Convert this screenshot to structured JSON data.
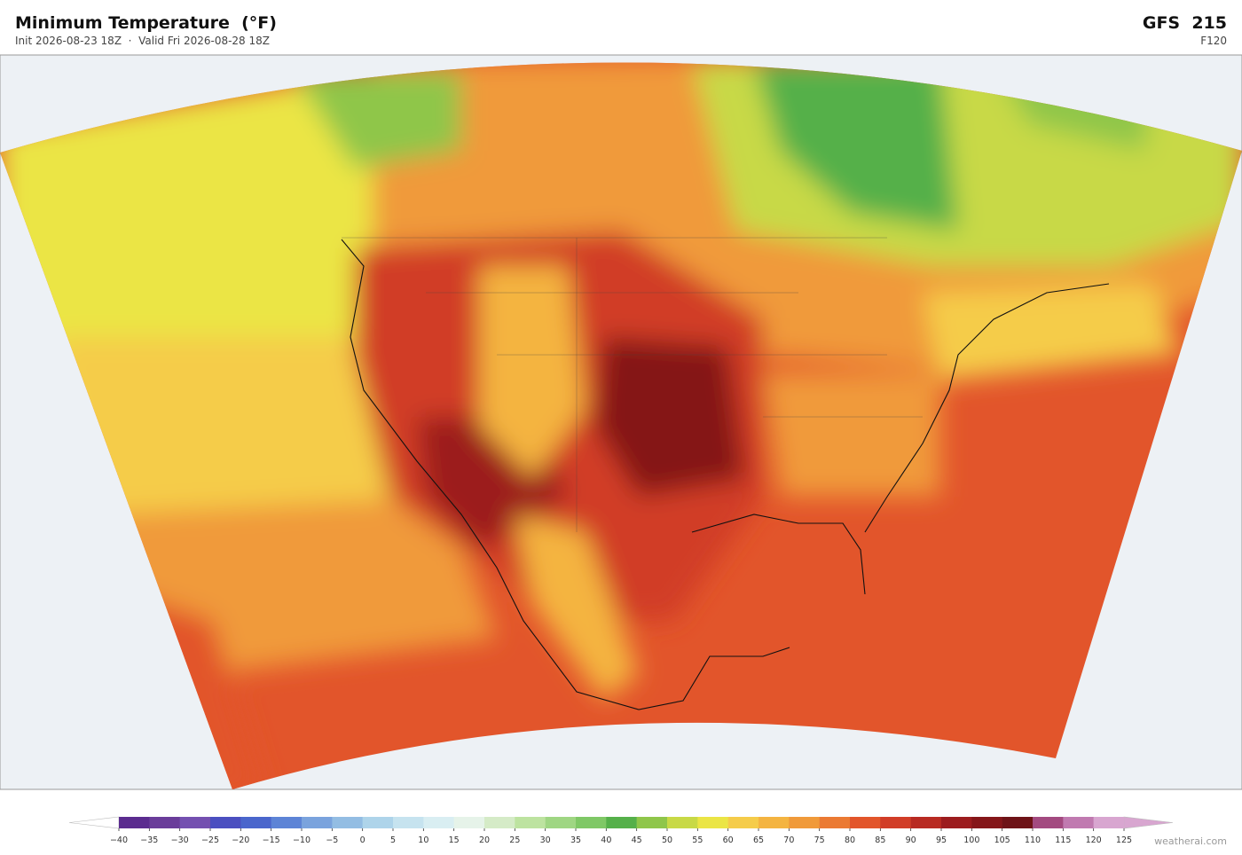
{
  "header": {
    "title": "Minimum Temperature  (°F)",
    "subtitle": "Init 2026-08-23 18Z  ·  Valid Fri 2026-08-28 18Z",
    "model": "GFS  215",
    "forecast_hour": "F120"
  },
  "colorbar": {
    "ticks": [
      {
        "value": -40,
        "label": "−40"
      },
      {
        "value": -35,
        "label": "−35"
      },
      {
        "value": -30,
        "label": "−30"
      },
      {
        "value": -25,
        "label": "−25"
      },
      {
        "value": -20,
        "label": "−20"
      },
      {
        "value": -15,
        "label": "−15"
      },
      {
        "value": -10,
        "label": "−10"
      },
      {
        "value": -5,
        "label": "−5"
      },
      0,
      5,
      10,
      15,
      20,
      25,
      30,
      35,
      40,
      45,
      50,
      55,
      60,
      65,
      70,
      75,
      80,
      85,
      90,
      95,
      100,
      105,
      110,
      115,
      120,
      125
    ],
    "colors": [
      "#5b2c8f",
      "#6a3d9a",
      "#7450b0",
      "#4b4fc0",
      "#4a66cc",
      "#5d84d6",
      "#7aa3dd",
      "#93bde3",
      "#aed4ea",
      "#c6e3ef",
      "#d9eef2",
      "#e6f3e9",
      "#d5ebc7",
      "#bde3a0",
      "#9fd683",
      "#7fc866",
      "#55b04a",
      "#8fc64a",
      "#c8d946",
      "#ebe545",
      "#f5cc4a",
      "#f4b441",
      "#f09a3a",
      "#eb7a33",
      "#e2552b",
      "#d13d27",
      "#b82a22",
      "#9c1c1e",
      "#851619",
      "#6e1317",
      "#a34a80",
      "#c07ab0",
      "#d8a6d0"
    ]
  },
  "footer": {
    "credit": "weatherai.com"
  }
}
